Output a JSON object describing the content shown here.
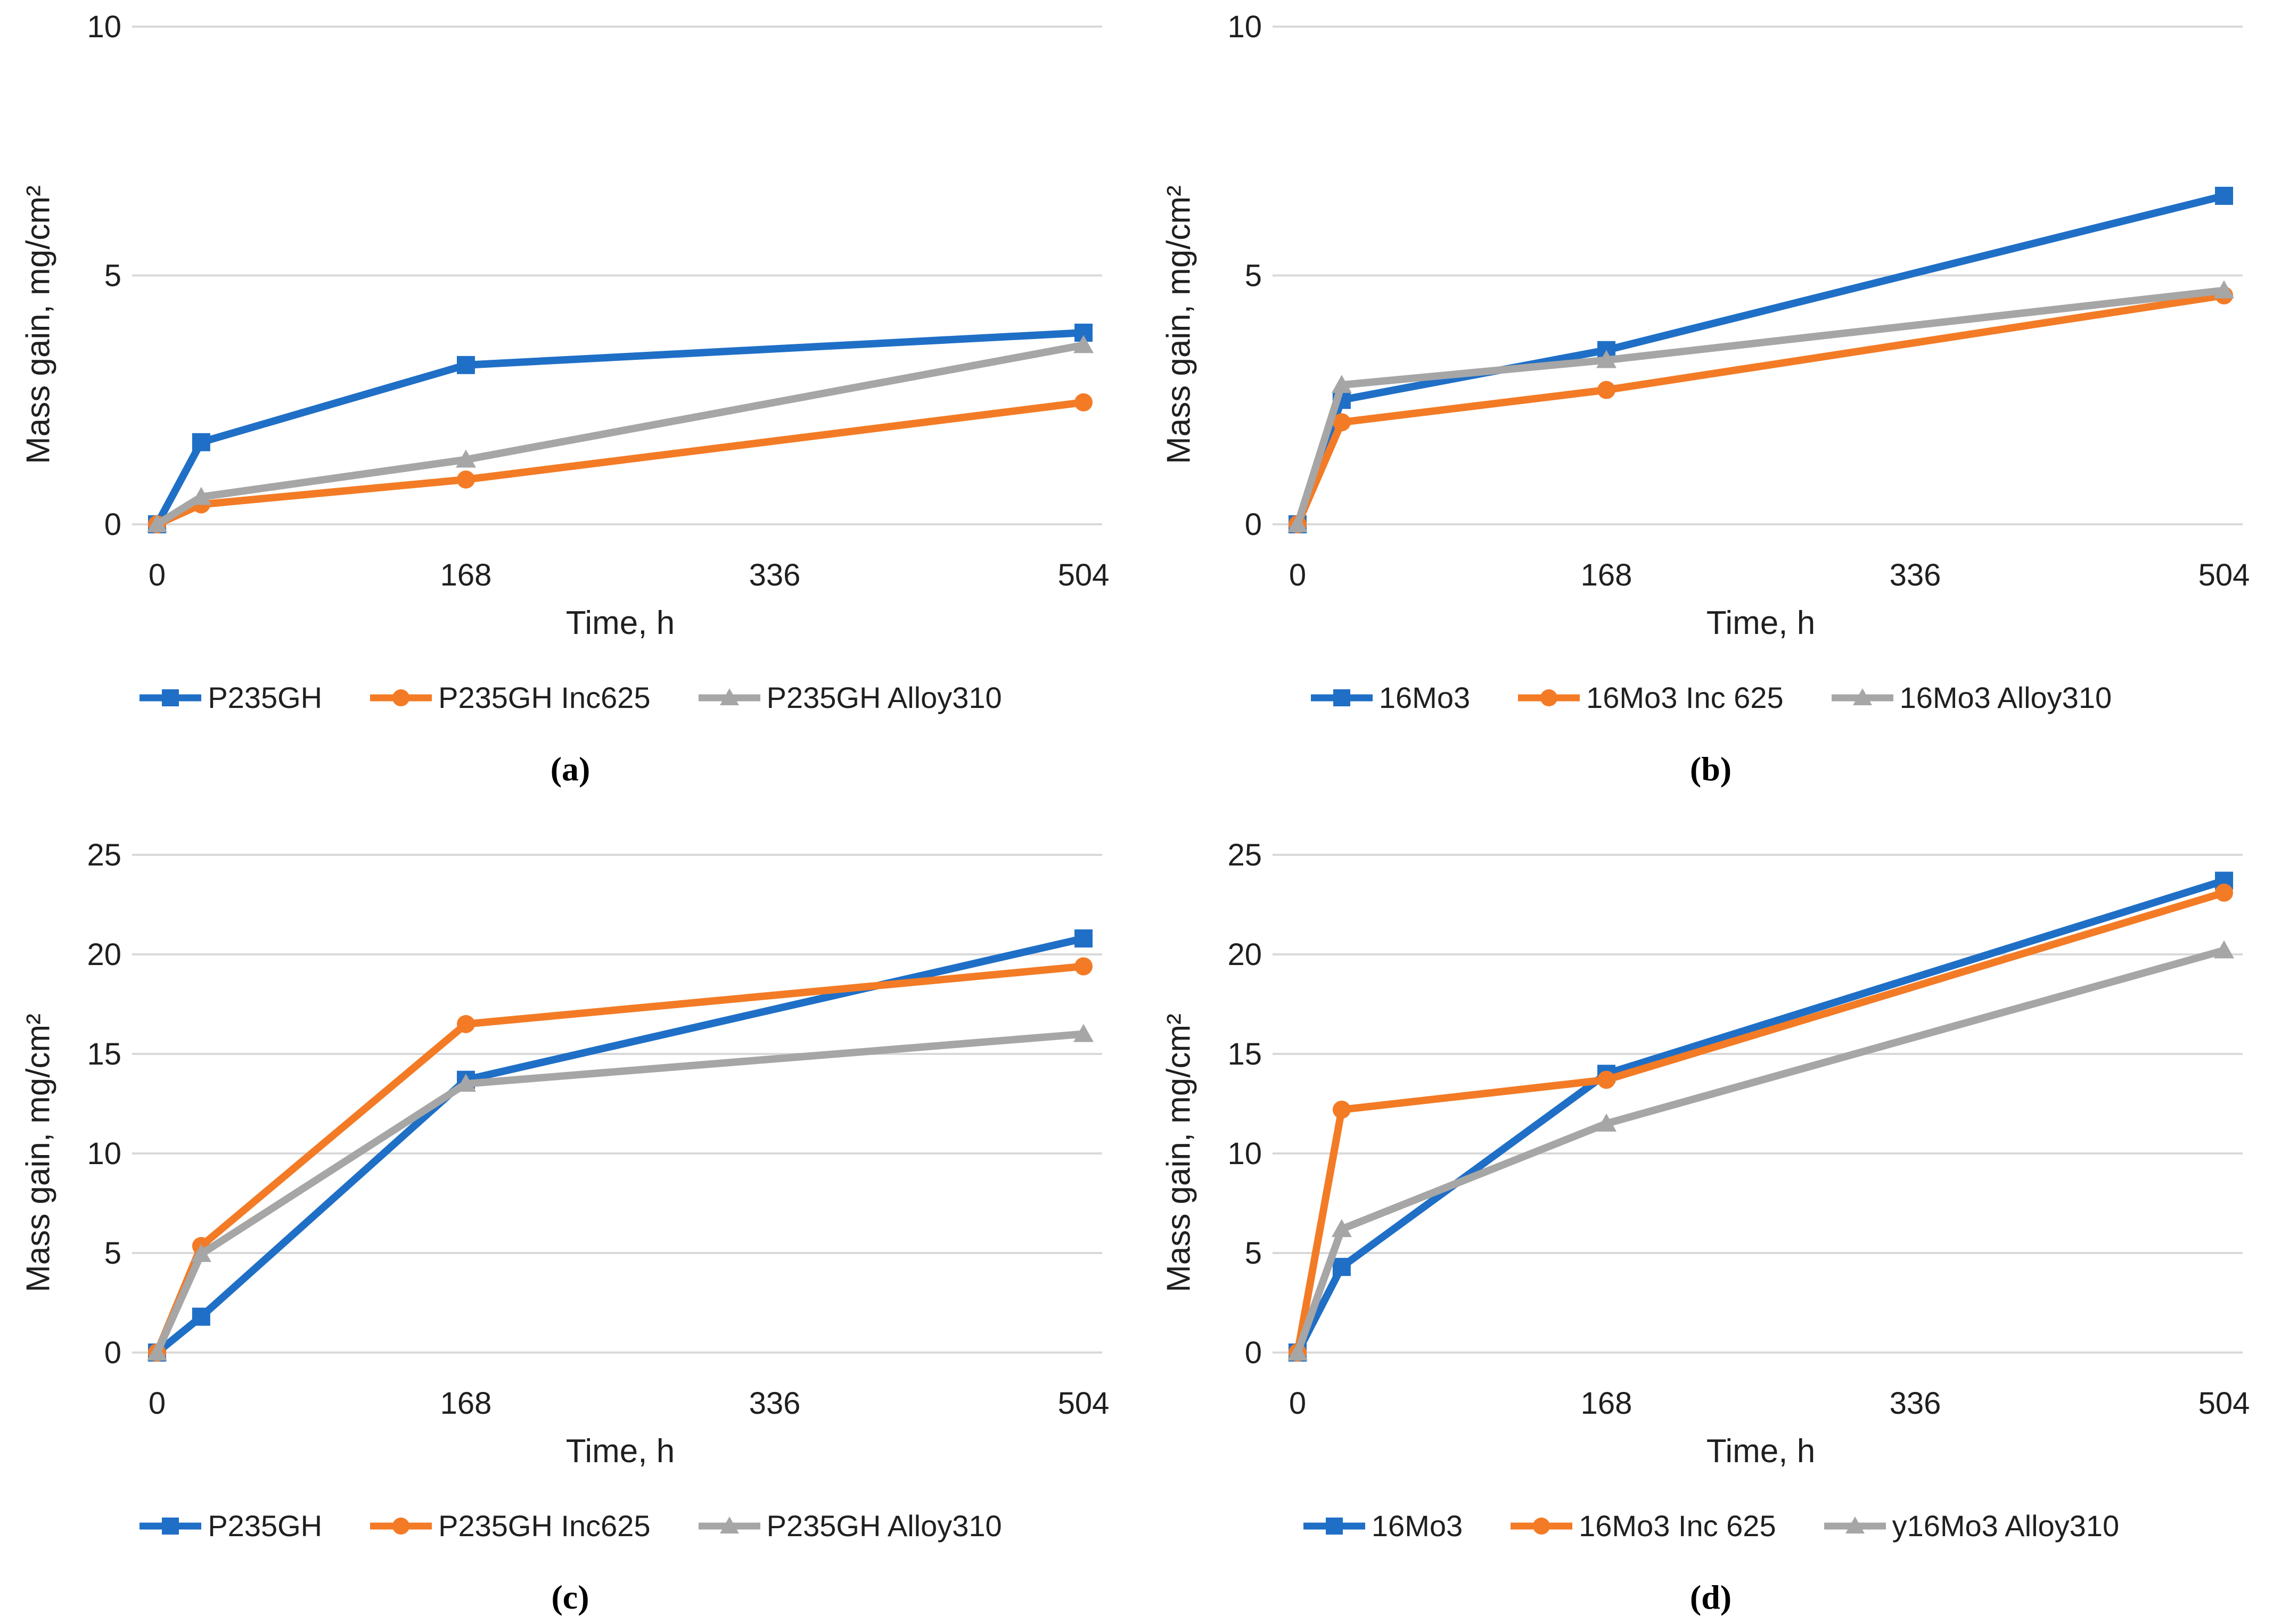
{
  "figure": {
    "background": "#ffffff"
  },
  "colors": {
    "blue": "#1F6FC6",
    "orange": "#F37B26",
    "gray": "#A6A6A6",
    "gridline": "#D9D9D9",
    "text": "#1F1F1F"
  },
  "chart_data": [
    {
      "id": "a",
      "type": "line",
      "caption": "(a)",
      "xlabel": "Time, h",
      "ylabel": "Mass gain, mg/cm²",
      "x": [
        0,
        24,
        168,
        504
      ],
      "xlim": [
        0,
        504
      ],
      "ylim": [
        0,
        10
      ],
      "xticks": [
        0,
        168,
        336,
        504
      ],
      "yticks": [
        0,
        5,
        10
      ],
      "grid": true,
      "legend_position": "bottom",
      "series": [
        {
          "name": "P235GH",
          "color_key": "blue",
          "marker": "square",
          "values": [
            0,
            1.65,
            3.2,
            3.85
          ]
        },
        {
          "name": "P235GH Inc625",
          "color_key": "orange",
          "marker": "circle",
          "values": [
            0,
            0.4,
            0.9,
            2.45
          ]
        },
        {
          "name": "P235GH Alloy310",
          "color_key": "gray",
          "marker": "triangle",
          "values": [
            0,
            0.55,
            1.3,
            3.6
          ]
        }
      ]
    },
    {
      "id": "b",
      "type": "line",
      "caption": "(b)",
      "xlabel": "Time, h",
      "ylabel": "Mass gain, mg/cm²",
      "x": [
        0,
        24,
        168,
        504
      ],
      "xlim": [
        0,
        504
      ],
      "ylim": [
        0,
        10
      ],
      "xticks": [
        0,
        168,
        336,
        504
      ],
      "yticks": [
        0,
        5,
        10
      ],
      "grid": true,
      "legend_position": "bottom",
      "series": [
        {
          "name": "16Mo3",
          "color_key": "blue",
          "marker": "square",
          "values": [
            0,
            2.5,
            3.5,
            6.6
          ]
        },
        {
          "name": "16Mo3 Inc 625",
          "color_key": "orange",
          "marker": "circle",
          "values": [
            0,
            2.05,
            2.7,
            4.6
          ]
        },
        {
          "name": "16Mo3 Alloy310",
          "color_key": "gray",
          "marker": "triangle",
          "values": [
            0,
            2.8,
            3.3,
            4.7
          ]
        }
      ]
    },
    {
      "id": "c",
      "type": "line",
      "caption": "(c)",
      "xlabel": "Time, h",
      "ylabel": "Mass gain, mg/cm²",
      "x": [
        0,
        24,
        168,
        504
      ],
      "xlim": [
        0,
        504
      ],
      "ylim": [
        0,
        25
      ],
      "xticks": [
        0,
        168,
        336,
        504
      ],
      "yticks": [
        0,
        5,
        10,
        15,
        20,
        25
      ],
      "grid": true,
      "legend_position": "bottom",
      "series": [
        {
          "name": "P235GH",
          "color_key": "blue",
          "marker": "square",
          "values": [
            0,
            1.8,
            13.7,
            20.8
          ]
        },
        {
          "name": "P235GH Inc625",
          "color_key": "orange",
          "marker": "circle",
          "values": [
            0,
            5.35,
            16.5,
            19.4
          ]
        },
        {
          "name": "P235GH Alloy310",
          "color_key": "gray",
          "marker": "triangle",
          "values": [
            0,
            4.95,
            13.5,
            16.0
          ]
        }
      ]
    },
    {
      "id": "d",
      "type": "line",
      "caption": "(d)",
      "xlabel": "Time, h",
      "ylabel": "Mass gain, mg/cm²",
      "x": [
        0,
        24,
        168,
        504
      ],
      "xlim": [
        0,
        504
      ],
      "ylim": [
        0,
        25
      ],
      "xticks": [
        0,
        168,
        336,
        504
      ],
      "yticks": [
        0,
        5,
        10,
        15,
        20,
        25
      ],
      "grid": true,
      "legend_position": "bottom",
      "series": [
        {
          "name": "16Mo3",
          "color_key": "blue",
          "marker": "square",
          "values": [
            0,
            4.3,
            14.0,
            23.7
          ]
        },
        {
          "name": "16Mo3 Inc 625",
          "color_key": "orange",
          "marker": "circle",
          "values": [
            0,
            12.2,
            13.7,
            23.1
          ]
        },
        {
          "name": "y16Mo3 Alloy310",
          "color_key": "gray",
          "marker": "triangle",
          "values": [
            0,
            6.2,
            11.5,
            20.2
          ]
        }
      ]
    }
  ]
}
